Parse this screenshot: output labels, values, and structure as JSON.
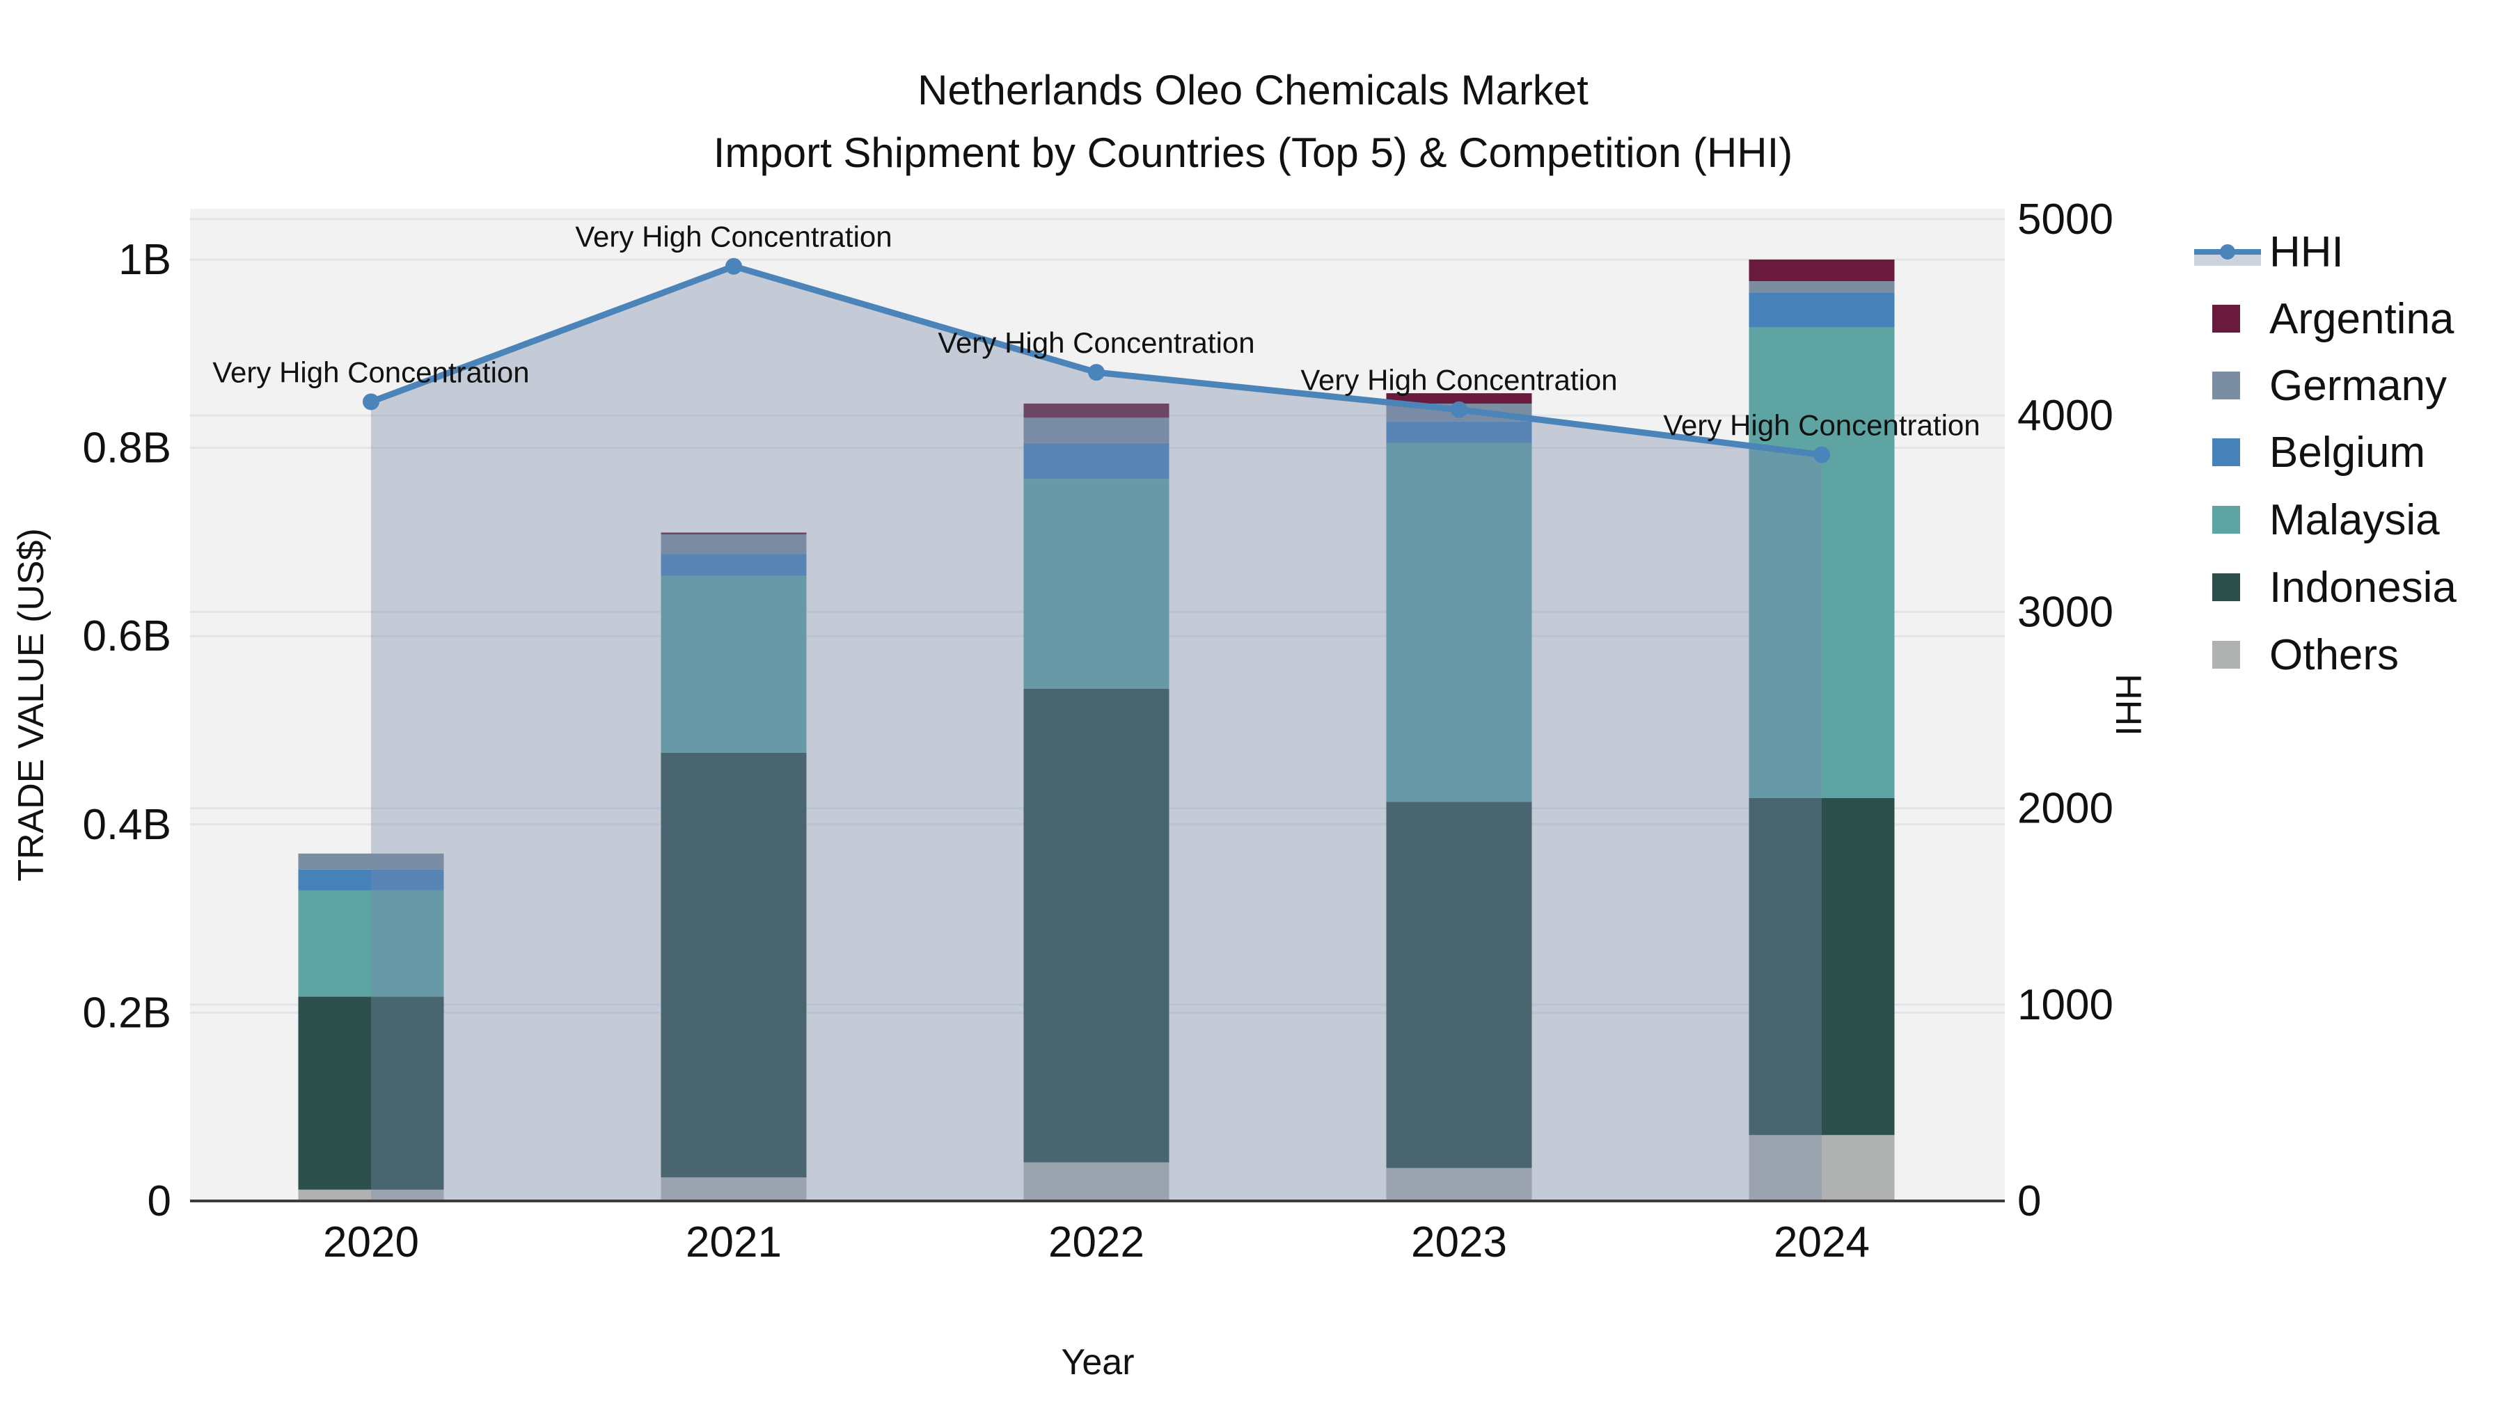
{
  "title": {
    "line1": "Netherlands Oleo Chemicals Market",
    "line2": "Import Shipment by Countries (Top 5) & Competition (HHI)"
  },
  "chart_data": {
    "type": "bar",
    "subtype": "stacked-bars-with-line-overlay",
    "categories": [
      "2020",
      "2021",
      "2022",
      "2023",
      "2024"
    ],
    "xlabel": "Year",
    "ylabel": "TRADE VALUE (US$)",
    "y2label": "HHI",
    "ylim": [
      0,
      1.054
    ],
    "y2lim": [
      0,
      5050
    ],
    "yticks": [
      {
        "value": 0,
        "label": "0"
      },
      {
        "value": 0.2,
        "label": "0.2B"
      },
      {
        "value": 0.4,
        "label": "0.4B"
      },
      {
        "value": 0.6,
        "label": "0.6B"
      },
      {
        "value": 0.8,
        "label": "0.8B"
      },
      {
        "value": 1.0,
        "label": "1B"
      }
    ],
    "y2ticks": [
      {
        "value": 0,
        "label": "0"
      },
      {
        "value": 1000,
        "label": "1000"
      },
      {
        "value": 2000,
        "label": "2000"
      },
      {
        "value": 3000,
        "label": "3000"
      },
      {
        "value": 4000,
        "label": "4000"
      },
      {
        "value": 5000,
        "label": "5000"
      }
    ],
    "series": [
      {
        "name": "Others",
        "unit": "B US$",
        "values": [
          0.012,
          0.025,
          0.041,
          0.035,
          0.07
        ],
        "color": "#b0b2b1"
      },
      {
        "name": "Indonesia",
        "unit": "B US$",
        "values": [
          0.205,
          0.451,
          0.503,
          0.389,
          0.358
        ],
        "color": "#2d4f4c"
      },
      {
        "name": "Malaysia",
        "unit": "B US$",
        "values": [
          0.113,
          0.188,
          0.223,
          0.381,
          0.5
        ],
        "color": "#5da4a3"
      },
      {
        "name": "Belgium",
        "unit": "B US$",
        "values": [
          0.022,
          0.023,
          0.038,
          0.023,
          0.037
        ],
        "color": "#4681ba"
      },
      {
        "name": "Germany",
        "unit": "B US$",
        "values": [
          0.017,
          0.021,
          0.027,
          0.019,
          0.012
        ],
        "color": "#7b8da0"
      },
      {
        "name": "Argentina",
        "unit": "B US$",
        "values": [
          0.0,
          0.002,
          0.015,
          0.011,
          0.023
        ],
        "color": "#6a1b3d"
      }
    ],
    "line_series": {
      "name": "HHI",
      "values": [
        4070,
        4760,
        4220,
        4030,
        3800
      ],
      "color": "#4a84b8",
      "area_fill": "rgba(120,140,170,0.38)",
      "markers": true
    },
    "annotations": [
      {
        "x": "2020",
        "text": "Very High Concentration"
      },
      {
        "x": "2021",
        "text": "Very High Concentration"
      },
      {
        "x": "2022",
        "text": "Very High Concentration"
      },
      {
        "x": "2023",
        "text": "Very High Concentration"
      },
      {
        "x": "2024",
        "text": "Very High Concentration"
      }
    ],
    "legend": {
      "position": "right",
      "entries": [
        "HHI",
        "Argentina",
        "Germany",
        "Belgium",
        "Malaysia",
        "Indonesia",
        "Others"
      ]
    },
    "grid": true
  },
  "colors": {
    "plot_bg": "#f2f2f3",
    "figure_bg": "#ffffff",
    "grid_line": "#e2e4e8",
    "axis_line": "#3c3c3c",
    "text": "#111111",
    "hhi_line": "#4a84b8",
    "hhi_area": "rgba(120,140,170,0.38)",
    "legend_hhi_band": "#ccd3dd"
  }
}
